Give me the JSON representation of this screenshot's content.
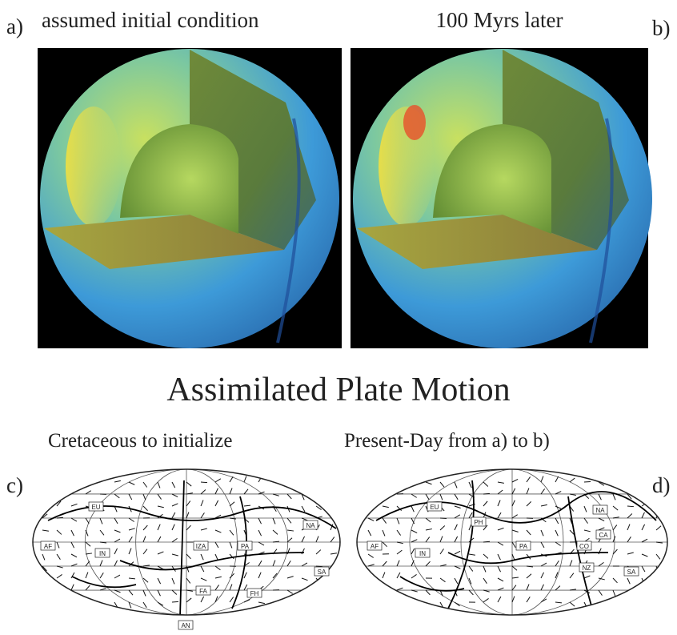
{
  "panels": [
    {
      "letter": "a)",
      "caption": "assumed initial condition"
    },
    {
      "letter": "b)",
      "caption": "100 Myrs later"
    }
  ],
  "section_title": "Assimilated Plate Motion",
  "maps": [
    {
      "letter": "c)",
      "caption": "Cretaceous to initialize",
      "plates": [
        "EU",
        "NA",
        "AF",
        "IN",
        "IZA",
        "PA",
        "FA",
        "FH",
        "SA",
        "AN"
      ]
    },
    {
      "letter": "d)",
      "caption": "Present-Day from a) to b)",
      "plates": [
        "EU",
        "NA",
        "AF",
        "IN",
        "PH",
        "PA",
        "CO",
        "CA",
        "NZ",
        "SA"
      ]
    }
  ]
}
